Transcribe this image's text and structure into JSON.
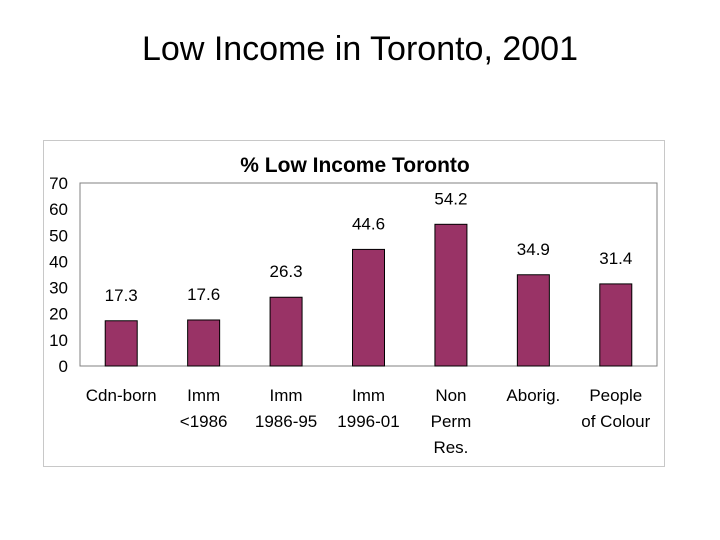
{
  "slide": {
    "title": "Low Income in Toronto, 2001"
  },
  "chart_data": {
    "type": "bar",
    "title": "% Low Income Toronto",
    "xlabel": "",
    "ylabel": "",
    "ylim": [
      0,
      70
    ],
    "yticks": [
      0,
      10,
      20,
      30,
      40,
      50,
      60,
      70
    ],
    "grid": false,
    "legend": "none",
    "bar_color": "#993366",
    "categories": [
      [
        "Cdn-born"
      ],
      [
        "Imm",
        "<1986"
      ],
      [
        "Imm",
        "1986-95"
      ],
      [
        "Imm",
        "1996-01"
      ],
      [
        "Non",
        "Perm",
        "Res."
      ],
      [
        "Aborig."
      ],
      [
        "People",
        "of Colour"
      ]
    ],
    "values": [
      17.3,
      17.6,
      26.3,
      44.6,
      54.2,
      34.9,
      31.4
    ],
    "data_labels": [
      "17.3",
      "17.6",
      "26.3",
      "44.6",
      "54.2",
      "34.9",
      "31.4"
    ]
  }
}
